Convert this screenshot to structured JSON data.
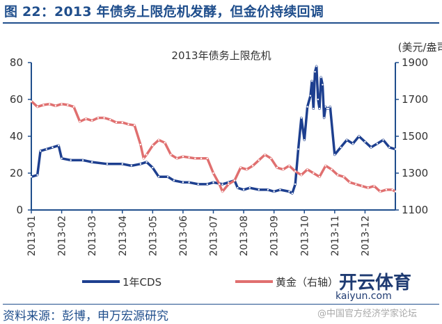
{
  "header": {
    "figure_title": "图 22：2013 年债务上限危机发酵，但金价持续回调"
  },
  "footer": {
    "source": "资料来源：彭博，申万宏源研究"
  },
  "watermark": {
    "name": "开云体育",
    "url": "kaiyun.com",
    "cn": "@中国官方经济学家论坛"
  },
  "colors": {
    "title_blue": "#1f4e8c",
    "cds": "#1d3f8f",
    "gold": "#e06f6f",
    "axis": "#1f4e8c"
  },
  "chart_data": {
    "type": "line",
    "title": "2013年债务上限危机",
    "y_right_unit": "(美元/盎司)",
    "x": [
      "2013-01",
      "2013-02",
      "2013-03",
      "2013-04",
      "2013-05",
      "2013-06",
      "2013-07",
      "2013-08",
      "2013-09",
      "2013-10",
      "2013-11",
      "2013-12"
    ],
    "ylim": [
      0,
      80
    ],
    "yticks": [
      0,
      20,
      40,
      60,
      80
    ],
    "y2lim": [
      1100,
      1900
    ],
    "y2ticks": [
      1100,
      1300,
      1500,
      1700,
      1900
    ],
    "grid": false,
    "legend": [
      "1年CDS",
      "黄金（右轴）"
    ],
    "series": [
      {
        "name": "1年CDS",
        "axis": "left",
        "values": [
          [
            2013.0,
            18
          ],
          [
            2013.02,
            19
          ],
          [
            2013.03,
            32
          ],
          [
            2013.05,
            33
          ],
          [
            2013.07,
            34
          ],
          [
            2013.09,
            35
          ],
          [
            2013.1,
            28
          ],
          [
            2013.13,
            27
          ],
          [
            2013.17,
            27
          ],
          [
            2013.2,
            26
          ],
          [
            2013.25,
            25
          ],
          [
            2013.3,
            25
          ],
          [
            2013.33,
            24
          ],
          [
            2013.36,
            25
          ],
          [
            2013.38,
            26
          ],
          [
            2013.4,
            23
          ],
          [
            2013.42,
            18
          ],
          [
            2013.45,
            18
          ],
          [
            2013.47,
            16
          ],
          [
            2013.5,
            15
          ],
          [
            2013.52,
            15
          ],
          [
            2013.55,
            14
          ],
          [
            2013.58,
            14
          ],
          [
            2013.6,
            15
          ],
          [
            2013.63,
            14
          ],
          [
            2013.65,
            15
          ],
          [
            2013.67,
            16
          ],
          [
            2013.68,
            12
          ],
          [
            2013.7,
            11
          ],
          [
            2013.72,
            12
          ],
          [
            2013.75,
            11
          ],
          [
            2013.78,
            11
          ],
          [
            2013.8,
            10
          ],
          [
            2013.82,
            11
          ],
          [
            2013.85,
            10
          ],
          [
            2013.86,
            9
          ],
          [
            2013.87,
            14
          ],
          [
            2013.88,
            33
          ],
          [
            2013.89,
            50
          ],
          [
            2013.9,
            38
          ],
          [
            2013.91,
            56
          ],
          [
            2013.92,
            62
          ],
          [
            2013.925,
            70
          ],
          [
            2013.93,
            55
          ],
          [
            2013.935,
            75
          ],
          [
            2013.94,
            78
          ],
          [
            2013.945,
            60
          ],
          [
            2013.95,
            55
          ],
          [
            2013.955,
            72
          ],
          [
            2013.96,
            68
          ],
          [
            2013.965,
            50
          ],
          [
            2013.97,
            56
          ],
          [
            2013.975,
            55
          ],
          [
            2013.98,
            55
          ],
          [
            2013.985,
            56
          ],
          [
            2014.0,
            30
          ],
          [
            2014.02,
            34
          ],
          [
            2014.04,
            38
          ],
          [
            2014.06,
            36
          ],
          [
            2014.08,
            40
          ],
          [
            2014.1,
            37
          ],
          [
            2014.12,
            34
          ],
          [
            2014.14,
            36
          ],
          [
            2014.16,
            38
          ],
          [
            2014.18,
            34
          ],
          [
            2014.2,
            33
          ]
        ]
      },
      {
        "name": "黄金（右轴）",
        "axis": "right",
        "values": [
          [
            2013.0,
            1690
          ],
          [
            2013.02,
            1660
          ],
          [
            2013.04,
            1670
          ],
          [
            2013.06,
            1675
          ],
          [
            2013.08,
            1665
          ],
          [
            2013.1,
            1675
          ],
          [
            2013.12,
            1670
          ],
          [
            2013.14,
            1660
          ],
          [
            2013.16,
            1580
          ],
          [
            2013.18,
            1595
          ],
          [
            2013.2,
            1585
          ],
          [
            2013.22,
            1600
          ],
          [
            2013.24,
            1600
          ],
          [
            2013.26,
            1590
          ],
          [
            2013.28,
            1575
          ],
          [
            2013.3,
            1575
          ],
          [
            2013.32,
            1565
          ],
          [
            2013.34,
            1560
          ],
          [
            2013.36,
            1455
          ],
          [
            2013.37,
            1380
          ],
          [
            2013.38,
            1400
          ],
          [
            2013.4,
            1450
          ],
          [
            2013.42,
            1480
          ],
          [
            2013.44,
            1465
          ],
          [
            2013.46,
            1400
          ],
          [
            2013.48,
            1380
          ],
          [
            2013.5,
            1390
          ],
          [
            2013.52,
            1385
          ],
          [
            2013.54,
            1380
          ],
          [
            2013.56,
            1380
          ],
          [
            2013.58,
            1380
          ],
          [
            2013.6,
            1300
          ],
          [
            2013.62,
            1240
          ],
          [
            2013.63,
            1200
          ],
          [
            2013.65,
            1240
          ],
          [
            2013.67,
            1260
          ],
          [
            2013.69,
            1330
          ],
          [
            2013.71,
            1320
          ],
          [
            2013.73,
            1340
          ],
          [
            2013.75,
            1370
          ],
          [
            2013.77,
            1400
          ],
          [
            2013.79,
            1380
          ],
          [
            2013.81,
            1330
          ],
          [
            2013.83,
            1320
          ],
          [
            2013.85,
            1340
          ],
          [
            2013.87,
            1310
          ],
          [
            2013.89,
            1290
          ],
          [
            2013.91,
            1320
          ],
          [
            2013.93,
            1300
          ],
          [
            2013.95,
            1280
          ],
          [
            2013.97,
            1340
          ],
          [
            2013.99,
            1320
          ],
          [
            2014.01,
            1290
          ],
          [
            2014.03,
            1280
          ],
          [
            2014.05,
            1250
          ],
          [
            2014.07,
            1240
          ],
          [
            2014.09,
            1230
          ],
          [
            2014.11,
            1220
          ],
          [
            2014.13,
            1230
          ],
          [
            2014.15,
            1200
          ],
          [
            2014.17,
            1210
          ],
          [
            2014.19,
            1210
          ],
          [
            2014.2,
            1200
          ]
        ]
      }
    ]
  }
}
